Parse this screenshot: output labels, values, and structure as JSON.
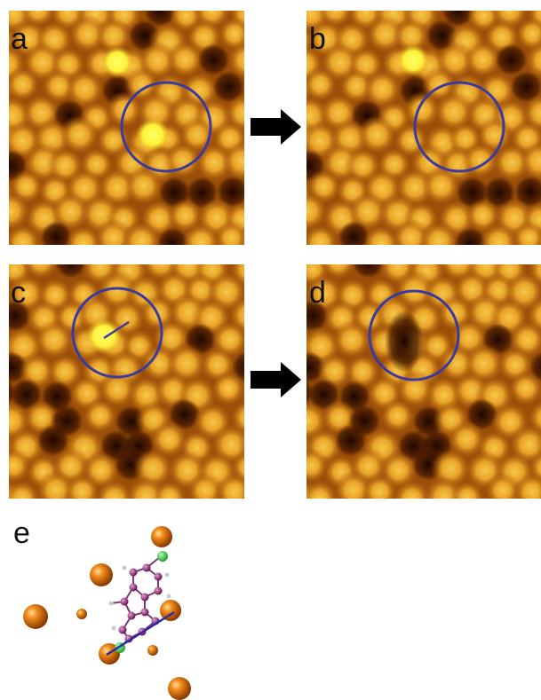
{
  "panels": [
    {
      "label": "a"
    },
    {
      "label": "b"
    },
    {
      "label": "c"
    },
    {
      "label": "d"
    },
    {
      "label": "e"
    }
  ]
}
